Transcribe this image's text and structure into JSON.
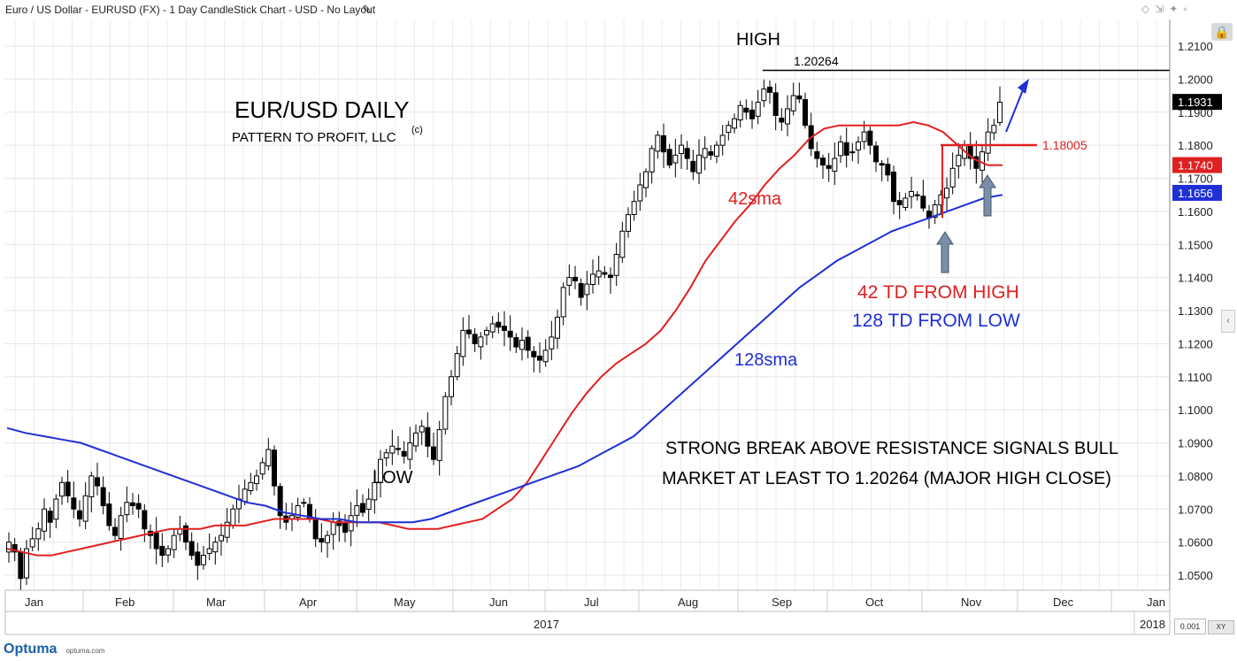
{
  "window": {
    "title": "Euro / US Dollar - EURUSD (FX) - 1 Day CandleStick Chart - USD - No Layout"
  },
  "footer": {
    "logo": "Optuma",
    "site": "optuma.com",
    "precision": "0.001",
    "xy": "XY"
  },
  "chart_data": {
    "type": "candlestick",
    "title": "EUR/USD DAILY",
    "subtitle": "PATTERN TO PROFIT, LLC",
    "subtitle_mark": "(c)",
    "xlabel": "2017",
    "ylim": [
      1.045,
      1.215
    ],
    "y_ticks": [
      "1.0500",
      "1.0600",
      "1.0700",
      "1.0800",
      "1.0900",
      "1.1000",
      "1.1100",
      "1.1200",
      "1.1300",
      "1.1400",
      "1.1500",
      "1.1600",
      "1.1700",
      "1.1800",
      "1.1900",
      "1.2000",
      "1.2100"
    ],
    "x_ticks": [
      "Jan",
      "Feb",
      "Mar",
      "Apr",
      "May",
      "Jun",
      "Jul",
      "Aug",
      "Sep",
      "Oct",
      "Nov",
      "Dec",
      "Jan"
    ],
    "year_labels": [
      "2017",
      "2018"
    ],
    "price_series": [
      1.06,
      1.057,
      1.049,
      1.058,
      1.061,
      1.064,
      1.07,
      1.066,
      1.073,
      1.078,
      1.074,
      1.07,
      1.067,
      1.074,
      1.08,
      1.077,
      1.071,
      1.065,
      1.062,
      1.068,
      1.072,
      1.071,
      1.07,
      1.064,
      1.062,
      1.058,
      1.056,
      1.058,
      1.062,
      1.064,
      1.06,
      1.056,
      1.053,
      1.056,
      1.058,
      1.06,
      1.062,
      1.066,
      1.07,
      1.073,
      1.076,
      1.078,
      1.08,
      1.084,
      1.088,
      1.077,
      1.068,
      1.066,
      1.068,
      1.071,
      1.072,
      1.067,
      1.061,
      1.06,
      1.062,
      1.066,
      1.065,
      1.063,
      1.068,
      1.071,
      1.069,
      1.073,
      1.078,
      1.085,
      1.087,
      1.089,
      1.088,
      1.086,
      1.09,
      1.093,
      1.095,
      1.089,
      1.085,
      1.094,
      1.104,
      1.11,
      1.117,
      1.124,
      1.123,
      1.12,
      1.122,
      1.124,
      1.126,
      1.125,
      1.124,
      1.122,
      1.119,
      1.121,
      1.118,
      1.116,
      1.115,
      1.118,
      1.122,
      1.128,
      1.137,
      1.14,
      1.139,
      1.134,
      1.138,
      1.141,
      1.142,
      1.141,
      1.14,
      1.147,
      1.154,
      1.159,
      1.163,
      1.168,
      1.172,
      1.179,
      1.183,
      1.178,
      1.174,
      1.177,
      1.18,
      1.176,
      1.172,
      1.177,
      1.179,
      1.177,
      1.18,
      1.183,
      1.186,
      1.188,
      1.192,
      1.19,
      1.188,
      1.193,
      1.197,
      1.196,
      1.189,
      1.187,
      1.191,
      1.195,
      1.194,
      1.186,
      1.179,
      1.176,
      1.174,
      1.173,
      1.176,
      1.181,
      1.177,
      1.178,
      1.181,
      1.184,
      1.18,
      1.175,
      1.174,
      1.171,
      1.163,
      1.162,
      1.164,
      1.166,
      1.165,
      1.161,
      1.158,
      1.162,
      1.165,
      1.167,
      1.173,
      1.177,
      1.18,
      1.176,
      1.173,
      1.178,
      1.184,
      1.186,
      1.193
    ],
    "candle_start": "2016-12-30",
    "sma42": [
      1.058,
      1.057,
      1.056,
      1.056,
      1.057,
      1.058,
      1.059,
      1.06,
      1.061,
      1.062,
      1.063,
      1.064,
      1.064,
      1.064,
      1.065,
      1.065,
      1.065,
      1.066,
      1.067,
      1.067,
      1.067,
      1.067,
      1.066,
      1.066,
      1.066,
      1.066,
      1.065,
      1.064,
      1.064,
      1.064,
      1.065,
      1.066,
      1.067,
      1.07,
      1.073,
      1.078,
      1.085,
      1.092,
      1.099,
      1.105,
      1.11,
      1.114,
      1.117,
      1.12,
      1.124,
      1.13,
      1.137,
      1.145,
      1.151,
      1.157,
      1.162,
      1.168,
      1.173,
      1.177,
      1.182,
      1.185,
      1.186,
      1.186,
      1.186,
      1.186,
      1.186,
      1.187,
      1.186,
      1.184,
      1.18,
      1.176,
      1.174,
      1.174
    ],
    "sma128": [
      1.0945,
      1.093,
      1.092,
      1.091,
      1.09,
      1.088,
      1.086,
      1.084,
      1.082,
      1.08,
      1.078,
      1.076,
      1.074,
      1.072,
      1.071,
      1.069,
      1.068,
      1.067,
      1.067,
      1.066,
      1.066,
      1.066,
      1.066,
      1.067,
      1.069,
      1.071,
      1.073,
      1.075,
      1.077,
      1.079,
      1.081,
      1.083,
      1.086,
      1.089,
      1.092,
      1.097,
      1.102,
      1.107,
      1.112,
      1.117,
      1.122,
      1.127,
      1.132,
      1.137,
      1.141,
      1.145,
      1.148,
      1.151,
      1.154,
      1.156,
      1.158,
      1.16,
      1.162,
      1.164,
      1.165
    ],
    "series_colors": {
      "candles": "#000000",
      "sma42": "#e02020",
      "sma128": "#1f2fd6"
    },
    "price_tags": [
      {
        "value": "1.1931",
        "bg": "#000000"
      },
      {
        "value": "1.1740",
        "bg": "#e02020"
      },
      {
        "value": "1.1656",
        "bg": "#1f2fd6"
      }
    ],
    "annotations": {
      "high": "HIGH",
      "high_value": "1.20264",
      "low": "LOW",
      "resistance": "1.18005",
      "sma42_label": "42sma",
      "sma128_label": "128sma",
      "td_high": "42 TD FROM HIGH",
      "td_low": "128 TD FROM LOW",
      "note_line1": "STRONG BREAK ABOVE RESISTANCE SIGNALS BULL",
      "note_line2": "MARKET AT LEAST TO 1.20264 (MAJOR HIGH CLOSE)"
    }
  }
}
